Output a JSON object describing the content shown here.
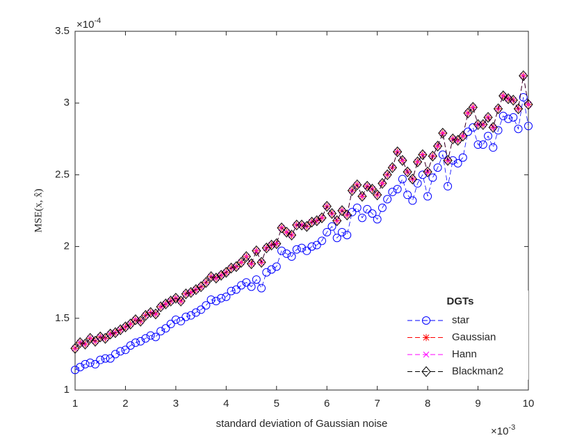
{
  "chart_data": {
    "type": "line",
    "xlabel": "standard deviation of Gaussian noise",
    "ylabel": "MSE(x, x̂)",
    "x_exponent": {
      "base": "×10",
      "power": "-3"
    },
    "y_exponent": {
      "base": "×10",
      "power": "-4"
    },
    "legend_title": "DGTs",
    "legend": "lower right",
    "xlim": [
      1,
      10
    ],
    "xticks": [
      1,
      2,
      3,
      4,
      5,
      6,
      7,
      8,
      9,
      10
    ],
    "ylim": [
      1,
      3.5
    ],
    "yticks": [
      1,
      1.5,
      2,
      2.5,
      3,
      3.5
    ],
    "x": [
      1.0,
      1.1,
      1.2,
      1.3,
      1.4,
      1.5,
      1.6,
      1.7,
      1.8,
      1.9,
      2.0,
      2.1,
      2.2,
      2.3,
      2.4,
      2.5,
      2.6,
      2.7,
      2.8,
      2.9,
      3.0,
      3.1,
      3.2,
      3.3,
      3.4,
      3.5,
      3.6,
      3.7,
      3.8,
      3.9,
      4.0,
      4.1,
      4.2,
      4.3,
      4.4,
      4.5,
      4.6,
      4.7,
      4.8,
      4.9,
      5.0,
      5.1,
      5.2,
      5.3,
      5.4,
      5.5,
      5.6,
      5.7,
      5.8,
      5.9,
      6.0,
      6.1,
      6.2,
      6.3,
      6.4,
      6.5,
      6.6,
      6.7,
      6.8,
      6.9,
      7.0,
      7.1,
      7.2,
      7.3,
      7.4,
      7.5,
      7.6,
      7.7,
      7.8,
      7.9,
      8.0,
      8.1,
      8.2,
      8.3,
      8.4,
      8.5,
      8.6,
      8.7,
      8.8,
      8.9,
      9.0,
      9.1,
      9.2,
      9.3,
      9.4,
      9.5,
      9.6,
      9.7,
      9.8,
      9.9,
      10.0
    ],
    "series": [
      {
        "name": "star",
        "color": "#0000ff",
        "marker": "circle",
        "values": [
          1.14,
          1.16,
          1.18,
          1.19,
          1.18,
          1.21,
          1.22,
          1.22,
          1.25,
          1.27,
          1.28,
          1.31,
          1.33,
          1.34,
          1.36,
          1.38,
          1.37,
          1.41,
          1.43,
          1.46,
          1.49,
          1.48,
          1.51,
          1.52,
          1.54,
          1.56,
          1.59,
          1.63,
          1.62,
          1.64,
          1.65,
          1.69,
          1.7,
          1.73,
          1.75,
          1.72,
          1.77,
          1.71,
          1.82,
          1.84,
          1.86,
          1.97,
          1.95,
          1.93,
          1.98,
          1.99,
          1.97,
          2.0,
          2.01,
          2.04,
          2.1,
          2.14,
          2.06,
          2.1,
          2.08,
          2.24,
          2.27,
          2.2,
          2.26,
          2.23,
          2.19,
          2.27,
          2.33,
          2.38,
          2.4,
          2.47,
          2.36,
          2.32,
          2.44,
          2.5,
          2.35,
          2.48,
          2.55,
          2.64,
          2.42,
          2.6,
          2.58,
          2.62,
          2.8,
          2.83,
          2.71,
          2.71,
          2.77,
          2.69,
          2.81,
          2.91,
          2.89,
          2.9,
          2.82,
          3.04,
          2.84
        ]
      },
      {
        "name": "Gaussian",
        "color": "#ff0000",
        "marker": "asterisk",
        "values": [
          1.29,
          1.33,
          1.32,
          1.36,
          1.34,
          1.37,
          1.36,
          1.39,
          1.4,
          1.42,
          1.44,
          1.46,
          1.49,
          1.48,
          1.52,
          1.54,
          1.53,
          1.58,
          1.6,
          1.62,
          1.64,
          1.62,
          1.67,
          1.68,
          1.7,
          1.72,
          1.75,
          1.79,
          1.78,
          1.8,
          1.82,
          1.85,
          1.86,
          1.89,
          1.93,
          1.88,
          1.97,
          1.89,
          1.99,
          2.01,
          2.02,
          2.13,
          2.1,
          2.08,
          2.15,
          2.15,
          2.14,
          2.17,
          2.18,
          2.2,
          2.28,
          2.23,
          2.18,
          2.25,
          2.22,
          2.39,
          2.43,
          2.35,
          2.42,
          2.4,
          2.36,
          2.44,
          2.5,
          2.55,
          2.66,
          2.6,
          2.52,
          2.47,
          2.59,
          2.64,
          2.52,
          2.63,
          2.7,
          2.79,
          2.6,
          2.75,
          2.74,
          2.77,
          2.93,
          2.97,
          2.85,
          2.85,
          2.9,
          2.83,
          2.96,
          3.05,
          3.03,
          3.02,
          2.96,
          3.19,
          2.99
        ]
      },
      {
        "name": "Hann",
        "color": "#ff00ff",
        "marker": "cross",
        "values": [
          1.29,
          1.33,
          1.32,
          1.36,
          1.34,
          1.37,
          1.36,
          1.39,
          1.4,
          1.42,
          1.44,
          1.46,
          1.49,
          1.48,
          1.52,
          1.54,
          1.53,
          1.58,
          1.6,
          1.62,
          1.64,
          1.62,
          1.67,
          1.68,
          1.7,
          1.72,
          1.75,
          1.79,
          1.78,
          1.8,
          1.82,
          1.85,
          1.86,
          1.89,
          1.93,
          1.88,
          1.97,
          1.89,
          1.99,
          2.01,
          2.02,
          2.13,
          2.1,
          2.08,
          2.15,
          2.15,
          2.14,
          2.17,
          2.18,
          2.2,
          2.28,
          2.23,
          2.18,
          2.25,
          2.22,
          2.39,
          2.43,
          2.35,
          2.42,
          2.4,
          2.36,
          2.44,
          2.5,
          2.55,
          2.66,
          2.6,
          2.52,
          2.47,
          2.59,
          2.64,
          2.52,
          2.63,
          2.7,
          2.79,
          2.6,
          2.75,
          2.74,
          2.77,
          2.93,
          2.97,
          2.85,
          2.85,
          2.9,
          2.83,
          2.96,
          3.05,
          3.03,
          3.02,
          2.96,
          3.19,
          2.99
        ]
      },
      {
        "name": "Blackman2",
        "color": "#000000",
        "marker": "diamond",
        "values": [
          1.29,
          1.33,
          1.32,
          1.36,
          1.34,
          1.37,
          1.36,
          1.39,
          1.4,
          1.42,
          1.44,
          1.46,
          1.49,
          1.48,
          1.52,
          1.54,
          1.53,
          1.58,
          1.6,
          1.62,
          1.64,
          1.62,
          1.67,
          1.68,
          1.7,
          1.72,
          1.75,
          1.79,
          1.78,
          1.8,
          1.82,
          1.85,
          1.86,
          1.89,
          1.93,
          1.88,
          1.97,
          1.89,
          1.99,
          2.01,
          2.02,
          2.13,
          2.1,
          2.08,
          2.15,
          2.15,
          2.14,
          2.17,
          2.18,
          2.2,
          2.28,
          2.23,
          2.18,
          2.25,
          2.22,
          2.39,
          2.43,
          2.35,
          2.42,
          2.4,
          2.36,
          2.44,
          2.5,
          2.55,
          2.66,
          2.6,
          2.52,
          2.47,
          2.59,
          2.64,
          2.52,
          2.63,
          2.7,
          2.79,
          2.6,
          2.75,
          2.74,
          2.77,
          2.93,
          2.97,
          2.85,
          2.85,
          2.9,
          2.83,
          2.96,
          3.05,
          3.03,
          3.02,
          2.96,
          3.19,
          2.99
        ]
      }
    ]
  }
}
